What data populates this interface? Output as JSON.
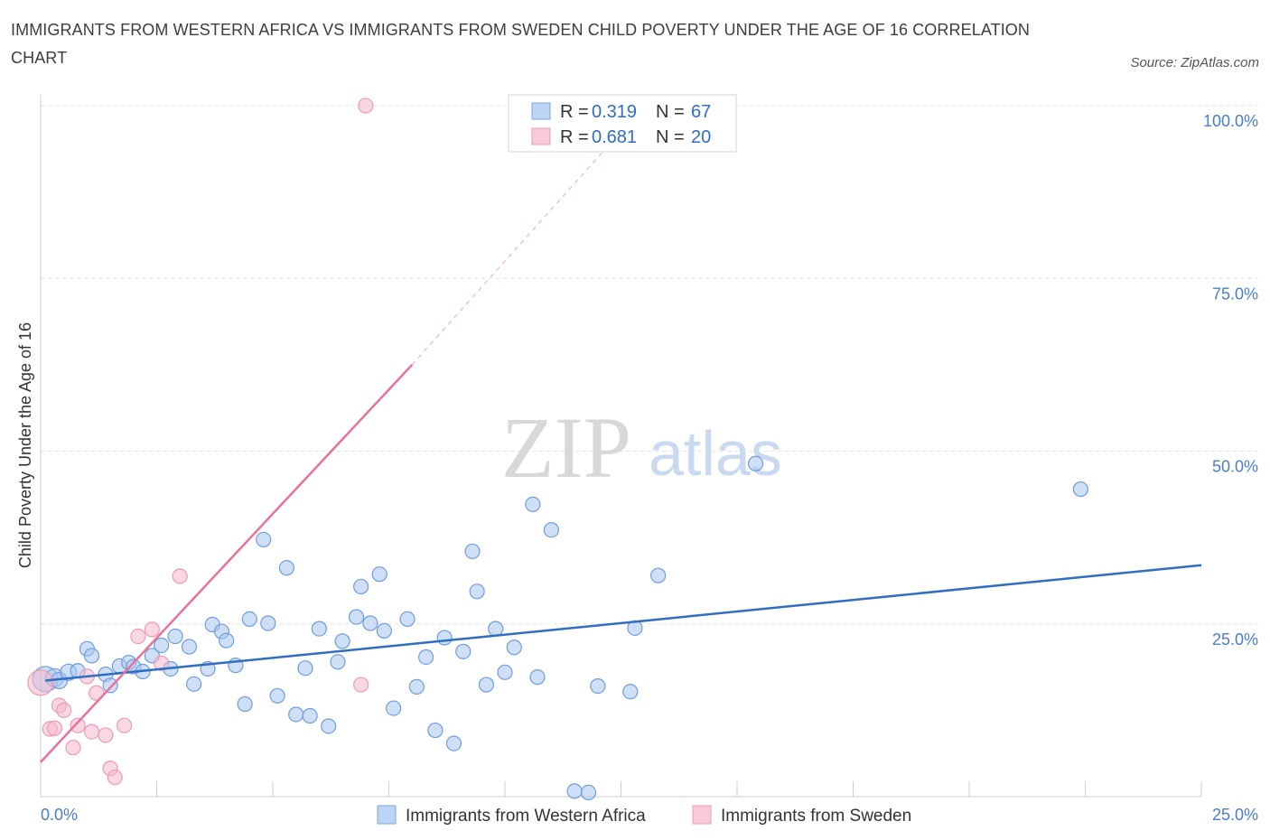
{
  "header": {
    "title": "IMMIGRANTS FROM WESTERN AFRICA VS IMMIGRANTS FROM SWEDEN CHILD POVERTY UNDER THE AGE OF 16 CORRELATION CHART",
    "source": "Source: ZipAtlas.com"
  },
  "watermark": {
    "zip": "ZIP",
    "atlas": "atlas"
  },
  "legend": {
    "series1": {
      "r_label": "R =",
      "r_value": "0.319",
      "n_label": "N =",
      "n_value": "67"
    },
    "series2": {
      "r_label": "R =",
      "r_value": "0.681",
      "n_label": "N =",
      "n_value": "20"
    }
  },
  "chart_data": {
    "type": "scatter",
    "title": "IMMIGRANTS FROM WESTERN AFRICA VS IMMIGRANTS FROM SWEDEN CHILD POVERTY UNDER THE AGE OF 16 CORRELATION CHART",
    "xlabel": "",
    "ylabel": "Child Poverty Under the Age of 16",
    "xlim": [
      0,
      25
    ],
    "ylim": [
      0,
      100
    ],
    "x_tick_labels": [
      "0.0%",
      "25.0%"
    ],
    "y_ticks": [
      25,
      50,
      75,
      100
    ],
    "y_tick_labels": [
      "25.0%",
      "50.0%",
      "75.0%",
      "100.0%"
    ],
    "grid": true,
    "legend_position": "top-center",
    "colors": {
      "series1": "#2f6ec4",
      "series1_fill": "#a8c7ef",
      "series2": "#e8729a",
      "series2_fill": "#f5b8cc"
    },
    "series": [
      {
        "name": "Immigrants from Western Africa",
        "r": 0.319,
        "n": 67,
        "trend": {
          "x": [
            0.1,
            25.0
          ],
          "y": [
            16.8,
            33.5
          ],
          "dashed_extension": false
        },
        "points": [
          [
            0.1,
            17.0,
            14
          ],
          [
            0.3,
            17.2,
            10
          ],
          [
            0.4,
            16.8,
            9
          ],
          [
            0.6,
            18.0,
            9
          ],
          [
            0.8,
            18.2,
            8
          ],
          [
            1.0,
            21.4,
            8
          ],
          [
            1.1,
            20.4,
            8
          ],
          [
            1.4,
            17.7,
            8
          ],
          [
            1.5,
            16.1,
            8
          ],
          [
            1.7,
            18.9,
            8
          ],
          [
            1.9,
            19.4,
            8
          ],
          [
            2.0,
            18.8,
            8
          ],
          [
            2.2,
            18.1,
            8
          ],
          [
            2.4,
            20.4,
            8
          ],
          [
            2.6,
            21.9,
            8
          ],
          [
            2.8,
            18.5,
            8
          ],
          [
            2.9,
            23.2,
            8
          ],
          [
            3.2,
            21.7,
            8
          ],
          [
            3.3,
            16.3,
            8
          ],
          [
            3.6,
            18.5,
            8
          ],
          [
            3.7,
            24.9,
            8
          ],
          [
            3.9,
            23.9,
            8
          ],
          [
            4.0,
            22.6,
            8
          ],
          [
            4.2,
            19.0,
            8
          ],
          [
            4.4,
            13.4,
            8
          ],
          [
            4.5,
            25.7,
            8
          ],
          [
            4.8,
            37.2,
            8
          ],
          [
            4.9,
            25.1,
            8
          ],
          [
            5.1,
            14.6,
            8
          ],
          [
            5.3,
            33.1,
            8
          ],
          [
            5.5,
            11.9,
            8
          ],
          [
            5.7,
            18.6,
            8
          ],
          [
            5.8,
            11.7,
            8
          ],
          [
            6.0,
            24.3,
            8
          ],
          [
            6.2,
            10.2,
            8
          ],
          [
            6.4,
            19.5,
            8
          ],
          [
            6.5,
            22.5,
            8
          ],
          [
            6.8,
            26.0,
            8
          ],
          [
            6.9,
            30.4,
            8
          ],
          [
            7.1,
            25.1,
            8
          ],
          [
            7.3,
            32.2,
            8
          ],
          [
            7.4,
            24.0,
            8
          ],
          [
            7.6,
            12.8,
            8
          ],
          [
            7.9,
            25.7,
            8
          ],
          [
            8.1,
            15.9,
            8
          ],
          [
            8.3,
            20.2,
            8
          ],
          [
            8.5,
            9.6,
            8
          ],
          [
            8.7,
            23.0,
            8
          ],
          [
            8.9,
            7.7,
            8
          ],
          [
            9.1,
            21.0,
            8
          ],
          [
            9.3,
            35.5,
            8
          ],
          [
            9.4,
            29.7,
            8
          ],
          [
            9.6,
            16.2,
            8
          ],
          [
            9.8,
            24.3,
            8
          ],
          [
            10.0,
            18.0,
            8
          ],
          [
            10.2,
            21.6,
            8
          ],
          [
            10.6,
            42.3,
            8
          ],
          [
            10.7,
            17.3,
            8
          ],
          [
            11.0,
            38.6,
            8
          ],
          [
            11.5,
            0.8,
            8
          ],
          [
            11.8,
            0.6,
            8
          ],
          [
            12.0,
            16.0,
            8
          ],
          [
            12.7,
            15.2,
            8
          ],
          [
            12.8,
            24.4,
            8
          ],
          [
            13.3,
            32.0,
            8
          ],
          [
            15.4,
            48.2,
            8
          ],
          [
            22.4,
            44.5,
            8
          ]
        ]
      },
      {
        "name": "Immigrants from Sweden",
        "r": 0.681,
        "n": 20,
        "trend": {
          "x": [
            0.0,
            8.0
          ],
          "y": [
            5.0,
            62.5
          ],
          "dashed_to": [
            12.2,
            94.0
          ]
        },
        "points": [
          [
            0.0,
            16.5,
            14
          ],
          [
            0.2,
            9.8,
            8
          ],
          [
            0.3,
            9.9,
            8
          ],
          [
            0.4,
            13.2,
            8
          ],
          [
            0.5,
            12.5,
            8
          ],
          [
            0.7,
            7.1,
            8
          ],
          [
            0.8,
            10.3,
            8
          ],
          [
            1.0,
            17.4,
            8
          ],
          [
            1.1,
            9.4,
            8
          ],
          [
            1.2,
            15.0,
            8
          ],
          [
            1.4,
            8.9,
            8
          ],
          [
            1.5,
            4.1,
            8
          ],
          [
            1.6,
            2.8,
            8
          ],
          [
            1.8,
            10.3,
            8
          ],
          [
            2.1,
            23.2,
            8
          ],
          [
            2.4,
            24.2,
            8
          ],
          [
            2.6,
            19.3,
            8
          ],
          [
            3.0,
            31.9,
            8
          ],
          [
            6.9,
            16.2,
            8
          ],
          [
            7.0,
            100.0,
            8
          ]
        ]
      }
    ]
  },
  "bottom_legend": {
    "series1_label": "Immigrants from Western Africa",
    "series2_label": "Immigrants from Sweden"
  }
}
